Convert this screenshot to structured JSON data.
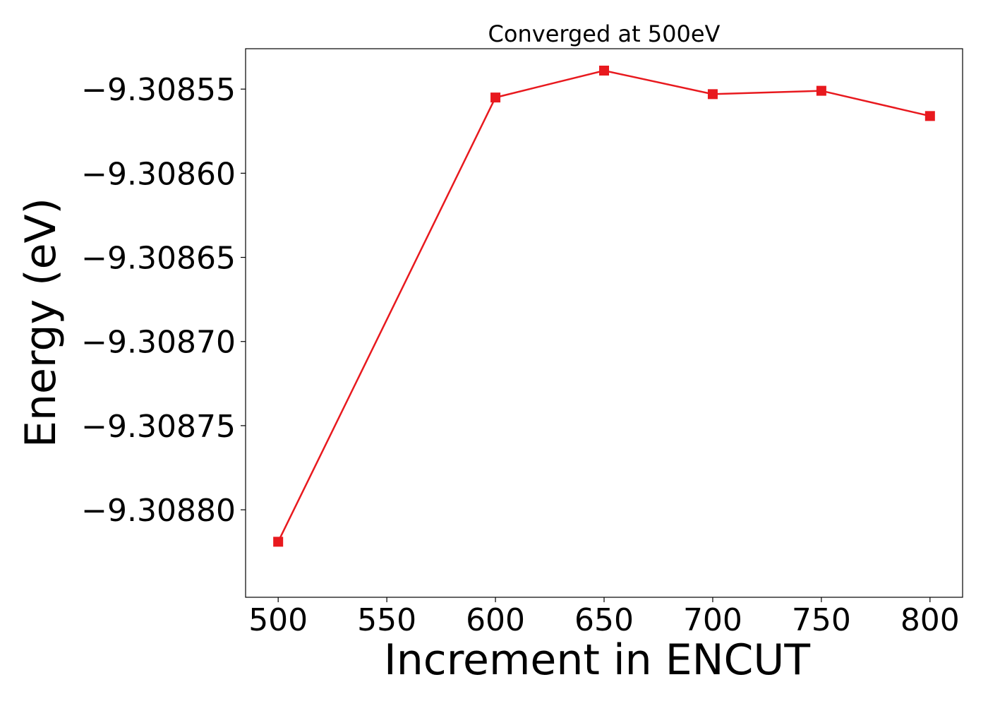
{
  "chart_data": {
    "type": "line",
    "title": "Converged at 500eV",
    "xlabel": "Increment in ENCUT",
    "ylabel": "Energy (eV)",
    "x": [
      500,
      600,
      650,
      700,
      750,
      800
    ],
    "series": [
      {
        "values": [
          -9.308819,
          -9.308555,
          -9.308539,
          -9.308553,
          -9.308551,
          -9.308566
        ],
        "color": "#e8191e",
        "marker": "square"
      }
    ],
    "xticks": [
      500,
      550,
      600,
      650,
      700,
      750,
      800
    ],
    "xtick_labels": [
      "500",
      "550",
      "600",
      "650",
      "700",
      "750",
      "800"
    ],
    "yticks": [
      -9.30855,
      -9.3086,
      -9.30865,
      -9.3087,
      -9.30875,
      -9.3088
    ],
    "ytick_labels": [
      "−9.30855",
      "−9.30860",
      "−9.30865",
      "−9.30870",
      "−9.30875",
      "−9.30880"
    ],
    "xlim": [
      485,
      815
    ],
    "ylim": [
      -9.308852,
      -9.308526
    ],
    "grid": false,
    "legend": false
  }
}
